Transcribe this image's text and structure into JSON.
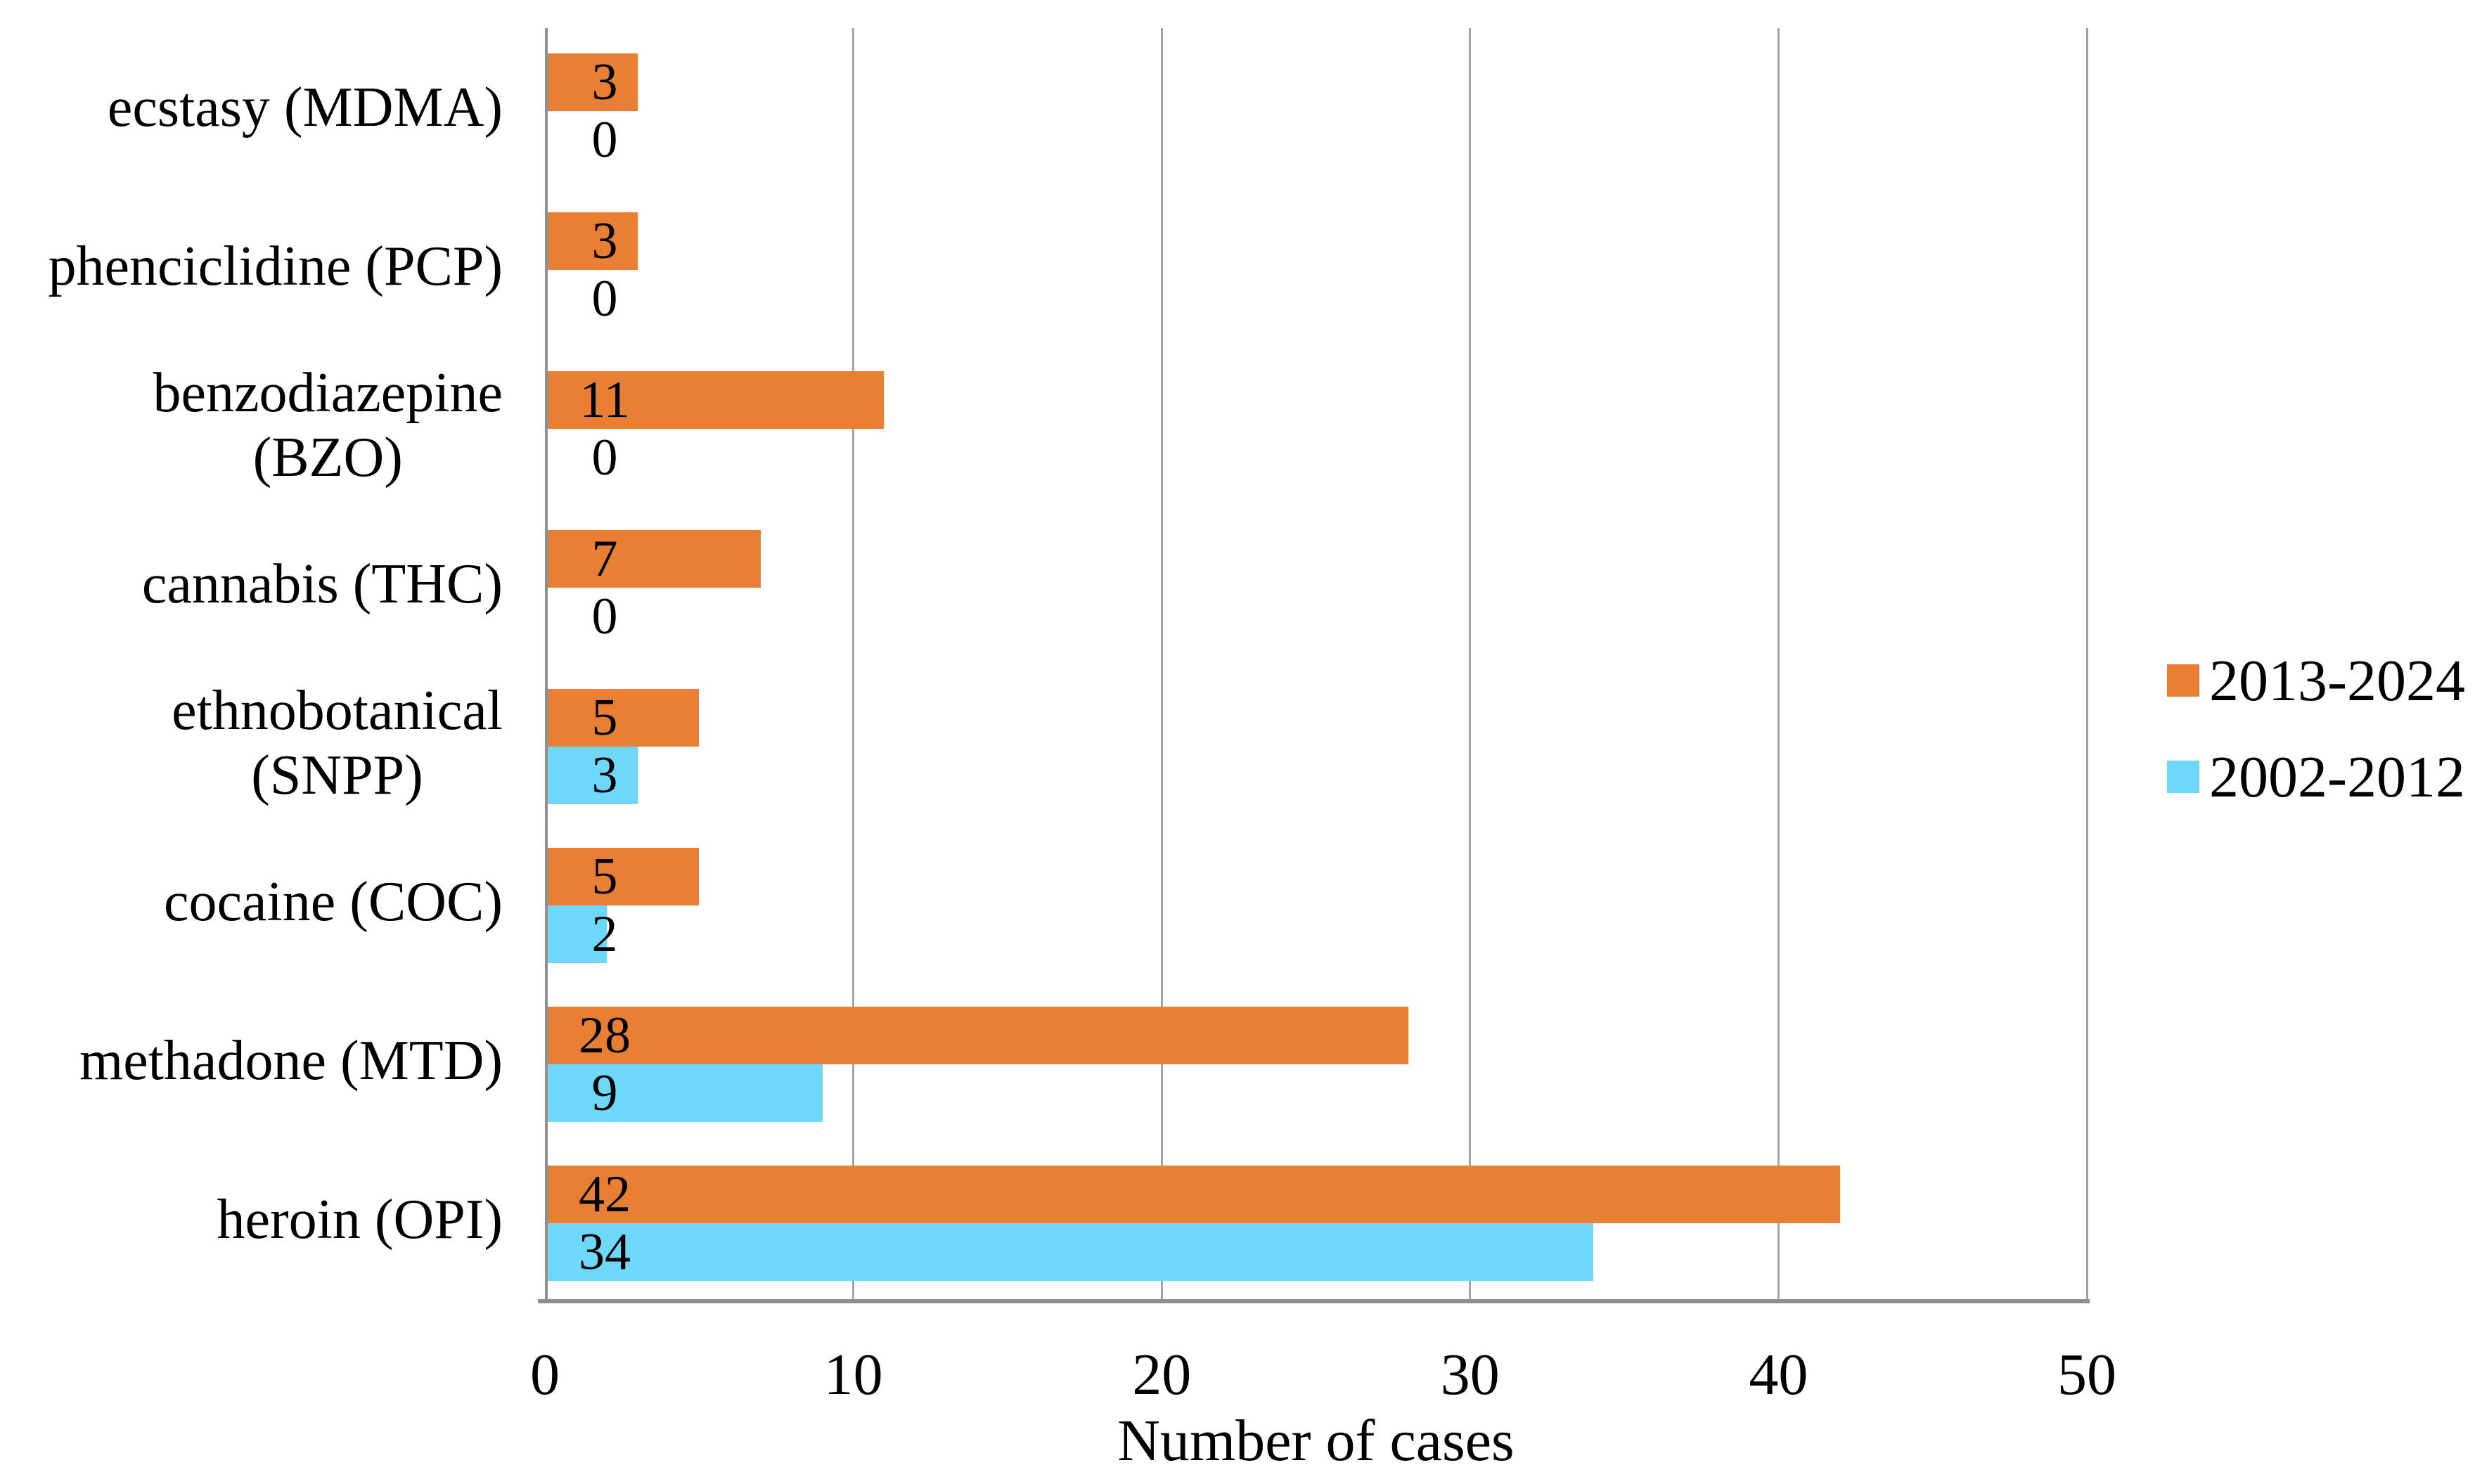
{
  "chart_data": {
    "type": "bar",
    "orientation": "horizontal",
    "order": "top-to-bottom",
    "categories": [
      "ecstasy (MDMA)",
      "phenciclidine (PCP)",
      "benzodiazepine (BZO)",
      "cannabis (THC)",
      "ethnobotanical (SNPP)",
      "cocaine (COC)",
      "methadone (MTD)",
      "heroin (OPI)"
    ],
    "category_lines": [
      [
        "ecstasy (MDMA)"
      ],
      [
        "phenciclidine (PCP)"
      ],
      [
        "benzodiazepine",
        "(BZO)"
      ],
      [
        "cannabis (THC)"
      ],
      [
        "ethnobotanical",
        "(SNPP)"
      ],
      [
        "cocaine (COC)"
      ],
      [
        "methadone (MTD)"
      ],
      [
        "heroin (OPI)"
      ]
    ],
    "series": [
      {
        "name": "2013-2024",
        "color": "#E97E35",
        "values": [
          3,
          3,
          11,
          7,
          5,
          5,
          28,
          42
        ]
      },
      {
        "name": "2002-2012",
        "color": "#6ED7FA",
        "values": [
          0,
          0,
          0,
          0,
          3,
          2,
          9,
          34
        ]
      }
    ],
    "data_labels_visible": true,
    "xlabel": "Number of cases",
    "xlim": [
      0,
      50
    ],
    "xticks": [
      0,
      10,
      20,
      30,
      40,
      50
    ],
    "grid": "vertical-gridlines",
    "legend_position": "right"
  },
  "colors": {
    "series_2013_2024": "#E97E35",
    "series_2002_2012": "#6ED7FA",
    "gridline": "#A3A3A3",
    "axis_line": "#8F8F8F",
    "text": "#000000",
    "background": "#FFFFFF"
  }
}
